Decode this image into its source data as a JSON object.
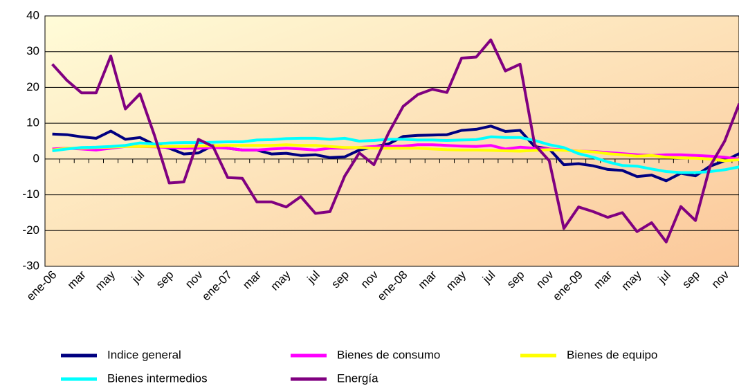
{
  "chart_data": {
    "type": "line",
    "categories": [
      "ene-06",
      null,
      "mar",
      null,
      "may",
      null,
      "jul",
      null,
      "sep",
      null,
      "nov",
      null,
      "ene-07",
      null,
      "mar",
      null,
      "may",
      null,
      "jul",
      null,
      "sep",
      null,
      "nov",
      null,
      "ene-08",
      null,
      "mar",
      null,
      "may",
      null,
      "jul",
      null,
      "sep",
      null,
      "nov",
      null,
      "ene-09",
      null,
      "mar",
      null,
      "may",
      null,
      "jul",
      null,
      "sep",
      null,
      "nov",
      null
    ],
    "ylim": [
      -30,
      40
    ],
    "yticks": [
      -30,
      -20,
      -10,
      0,
      10,
      20,
      30,
      40
    ],
    "grid": true,
    "legend": "bottom",
    "series": [
      {
        "name": "Indice general",
        "color": "#000080",
        "values": [
          7,
          6.8,
          6.2,
          5.8,
          7.8,
          5.5,
          6,
          4,
          3,
          1.4,
          1.7,
          3.8,
          3,
          2.5,
          2.5,
          1.4,
          1.6,
          1,
          1.2,
          0.4,
          0.6,
          2.5,
          3.4,
          4.2,
          6.3,
          6.6,
          6.7,
          6.8,
          8,
          8.3,
          9.2,
          7.7,
          8,
          3.5,
          2.8,
          -1.6,
          -1.3,
          -1.9,
          -2.9,
          -3.2,
          -4.9,
          -4.5,
          -6.1,
          -4,
          -4.7,
          -2,
          -0.5,
          1.5
        ]
      },
      {
        "name": "Bienes de consumo",
        "color": "#ff00ff",
        "values": [
          2.8,
          3,
          2.8,
          2.5,
          3,
          3.5,
          3.5,
          3.4,
          3.2,
          3,
          3,
          3.2,
          3,
          2.5,
          2.5,
          2.8,
          3,
          2.8,
          2.5,
          3,
          3,
          3.2,
          3.5,
          3.5,
          3.6,
          4,
          4,
          3.8,
          3.6,
          3.5,
          3.8,
          2.8,
          3.3,
          3,
          2.8,
          2.5,
          2.2,
          2.1,
          1.8,
          1.5,
          1.2,
          1,
          1.2,
          1.2,
          1,
          0.8,
          0.5,
          0
        ]
      },
      {
        "name": "Bienes de equipo",
        "color": "#ffff00",
        "values": [
          2.5,
          3,
          3,
          3.2,
          3.3,
          3.5,
          3.5,
          3.5,
          3.5,
          3.5,
          3.6,
          3.7,
          3.8,
          3.8,
          3.8,
          3.8,
          4,
          3.8,
          3.8,
          3.5,
          3.2,
          3.2,
          3,
          3,
          3,
          3,
          2.8,
          2.6,
          2.5,
          2.5,
          2.4,
          2.3,
          2.2,
          2.4,
          2.6,
          2.4,
          2.2,
          2,
          1.5,
          1.2,
          0.8,
          1,
          0.5,
          0.3,
          0.2,
          0,
          -0.5,
          -0.2
        ]
      },
      {
        "name": "Bienes intermedios",
        "color": "#00ffff",
        "values": [
          2.3,
          2.8,
          3.2,
          3.3,
          3.5,
          3.8,
          4.5,
          4.2,
          4.5,
          4.6,
          4.6,
          4.7,
          4.8,
          4.8,
          5.3,
          5.4,
          5.7,
          5.8,
          5.8,
          5.5,
          5.8,
          5,
          5.2,
          5.5,
          5.5,
          5.3,
          5.3,
          5.2,
          5.3,
          5.4,
          6.2,
          6,
          6,
          5.2,
          4,
          3.2,
          1.5,
          0.5,
          -0.8,
          -1.8,
          -2,
          -2.8,
          -3.5,
          -3.8,
          -3.8,
          -3.5,
          -3,
          -2.2
        ]
      },
      {
        "name": "Energía",
        "color": "#800080",
        "values": [
          26.5,
          22,
          18.5,
          18.5,
          28.8,
          14,
          18.2,
          6.5,
          -6.7,
          -6.4,
          5.5,
          3.5,
          -5.2,
          -5.4,
          -12,
          -12,
          -13.4,
          -10.5,
          -15.2,
          -14.7,
          -4.8,
          1.7,
          -1.6,
          7.2,
          14.7,
          18,
          19.5,
          18.6,
          28.2,
          28.5,
          33.3,
          24.6,
          26.5,
          4,
          -0.5,
          -19.4,
          -13.4,
          -14.7,
          -16.3,
          -15,
          -20.3,
          -17.8,
          -23.2,
          -13.3,
          -17.2,
          -2,
          5,
          15.5
        ]
      }
    ]
  }
}
